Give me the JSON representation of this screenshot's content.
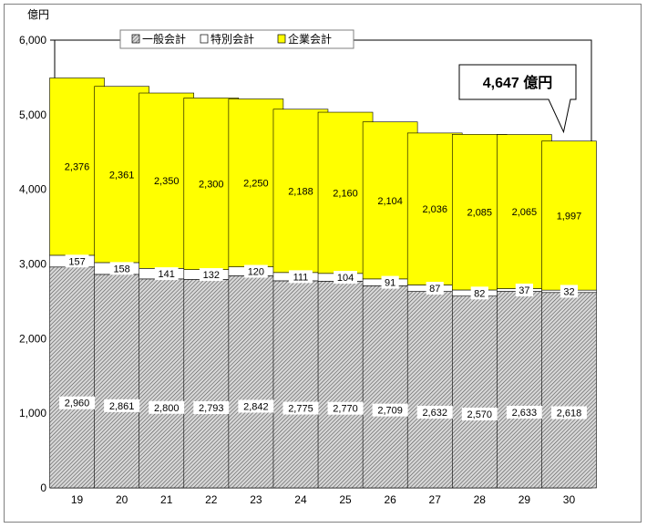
{
  "chart_data": {
    "type": "bar",
    "stacked": true,
    "unit": "億円",
    "categories": [
      "19",
      "20",
      "21",
      "22",
      "23",
      "24",
      "25",
      "26",
      "27",
      "28",
      "29",
      "30"
    ],
    "series": [
      {
        "name": "一般会計",
        "color": "#b0b0b0",
        "pattern": "hatch",
        "values": [
          2960,
          2861,
          2800,
          2793,
          2842,
          2775,
          2770,
          2709,
          2632,
          2570,
          2633,
          2618
        ],
        "labels": [
          "2,960",
          "2,861",
          "2,800",
          "2,793",
          "2,842",
          "2,775",
          "2,770",
          "2,709",
          "2,632",
          "2,570",
          "2,633",
          "2,618"
        ]
      },
      {
        "name": "特別会計",
        "color": "#ffffff",
        "values": [
          157,
          158,
          141,
          132,
          120,
          111,
          104,
          91,
          87,
          82,
          37,
          32
        ],
        "labels": [
          "157",
          "158",
          "141",
          "132",
          "120",
          "111",
          "104",
          "91",
          "87",
          "82",
          "37",
          "32"
        ]
      },
      {
        "name": "企業会計",
        "color": "#ffff00",
        "values": [
          2376,
          2361,
          2350,
          2300,
          2250,
          2188,
          2160,
          2104,
          2036,
          2085,
          2065,
          1997
        ],
        "labels": [
          "2,376",
          "2,361",
          "2,350",
          "2,300",
          "2,250",
          "2,188",
          "2,160",
          "2,104",
          "2,036",
          "2,085",
          "2,065",
          "1,997"
        ]
      }
    ],
    "ylim": [
      0,
      6000
    ],
    "yticks": [
      {
        "v": 0,
        "label": "0"
      },
      {
        "v": 1000,
        "label": "1,000"
      },
      {
        "v": 2000,
        "label": "2,000"
      },
      {
        "v": 3000,
        "label": "3,000"
      },
      {
        "v": 4000,
        "label": "4,000"
      },
      {
        "v": 5000,
        "label": "5,000"
      },
      {
        "v": 6000,
        "label": "6,000"
      }
    ],
    "legend_position": "top-center",
    "grid": false,
    "callout": {
      "text": "4,647 億円",
      "target_category": "30"
    }
  }
}
